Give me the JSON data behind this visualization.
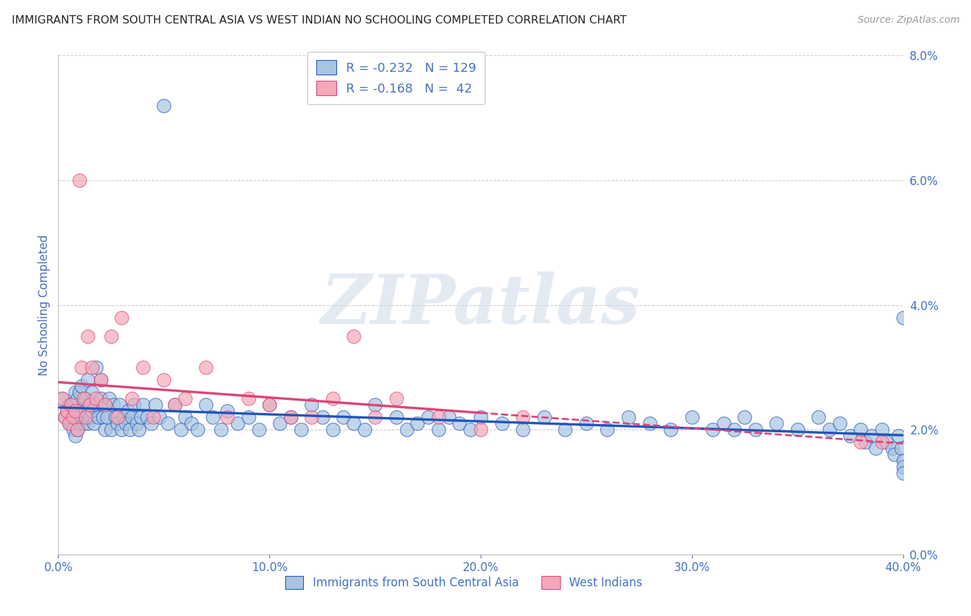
{
  "title": "IMMIGRANTS FROM SOUTH CENTRAL ASIA VS WEST INDIAN NO SCHOOLING COMPLETED CORRELATION CHART",
  "source": "Source: ZipAtlas.com",
  "ylabel": "No Schooling Completed",
  "legend_label1": "Immigrants from South Central Asia",
  "legend_label2": "West Indians",
  "R1": -0.232,
  "N1": 129,
  "R2": -0.168,
  "N2": 42,
  "xlim": [
    0.0,
    0.4
  ],
  "ylim": [
    0.0,
    0.08
  ],
  "xticks": [
    0.0,
    0.1,
    0.2,
    0.3,
    0.4
  ],
  "yticks": [
    0.0,
    0.02,
    0.04,
    0.06,
    0.08
  ],
  "color1": "#a8c4e0",
  "color2": "#f4a8b8",
  "line_color1": "#2255bb",
  "line_color2": "#dd4477",
  "bg_color": "#ffffff",
  "grid_color": "#cccccc",
  "title_color": "#222222",
  "tick_color": "#4472c4",
  "watermark": "ZIPatlas",
  "blue_scatter_x": [
    0.002,
    0.003,
    0.004,
    0.005,
    0.005,
    0.006,
    0.006,
    0.007,
    0.007,
    0.008,
    0.008,
    0.008,
    0.009,
    0.009,
    0.01,
    0.01,
    0.01,
    0.011,
    0.011,
    0.012,
    0.012,
    0.013,
    0.013,
    0.014,
    0.014,
    0.015,
    0.015,
    0.016,
    0.016,
    0.017,
    0.018,
    0.018,
    0.019,
    0.02,
    0.02,
    0.021,
    0.022,
    0.022,
    0.023,
    0.024,
    0.025,
    0.026,
    0.027,
    0.028,
    0.029,
    0.03,
    0.031,
    0.032,
    0.033,
    0.034,
    0.035,
    0.036,
    0.037,
    0.038,
    0.039,
    0.04,
    0.042,
    0.044,
    0.046,
    0.048,
    0.05,
    0.052,
    0.055,
    0.058,
    0.06,
    0.063,
    0.066,
    0.07,
    0.073,
    0.077,
    0.08,
    0.085,
    0.09,
    0.095,
    0.1,
    0.105,
    0.11,
    0.115,
    0.12,
    0.125,
    0.13,
    0.135,
    0.14,
    0.145,
    0.15,
    0.16,
    0.165,
    0.17,
    0.175,
    0.18,
    0.185,
    0.19,
    0.195,
    0.2,
    0.21,
    0.22,
    0.23,
    0.24,
    0.25,
    0.26,
    0.27,
    0.28,
    0.29,
    0.3,
    0.31,
    0.315,
    0.32,
    0.325,
    0.33,
    0.34,
    0.35,
    0.36,
    0.365,
    0.37,
    0.375,
    0.38,
    0.382,
    0.385,
    0.387,
    0.39,
    0.392,
    0.395,
    0.396,
    0.398,
    0.399,
    0.4,
    0.4,
    0.4,
    0.4
  ],
  "blue_scatter_y": [
    0.025,
    0.022,
    0.023,
    0.024,
    0.021,
    0.024,
    0.021,
    0.023,
    0.02,
    0.026,
    0.022,
    0.019,
    0.025,
    0.02,
    0.026,
    0.023,
    0.021,
    0.027,
    0.022,
    0.024,
    0.021,
    0.025,
    0.023,
    0.028,
    0.021,
    0.024,
    0.022,
    0.026,
    0.023,
    0.021,
    0.03,
    0.024,
    0.022,
    0.028,
    0.025,
    0.022,
    0.024,
    0.02,
    0.022,
    0.025,
    0.02,
    0.024,
    0.022,
    0.021,
    0.024,
    0.02,
    0.022,
    0.021,
    0.023,
    0.02,
    0.022,
    0.024,
    0.021,
    0.02,
    0.022,
    0.024,
    0.022,
    0.021,
    0.024,
    0.022,
    0.072,
    0.021,
    0.024,
    0.02,
    0.022,
    0.021,
    0.02,
    0.024,
    0.022,
    0.02,
    0.023,
    0.021,
    0.022,
    0.02,
    0.024,
    0.021,
    0.022,
    0.02,
    0.024,
    0.022,
    0.02,
    0.022,
    0.021,
    0.02,
    0.024,
    0.022,
    0.02,
    0.021,
    0.022,
    0.02,
    0.022,
    0.021,
    0.02,
    0.022,
    0.021,
    0.02,
    0.022,
    0.02,
    0.021,
    0.02,
    0.022,
    0.021,
    0.02,
    0.022,
    0.02,
    0.021,
    0.02,
    0.022,
    0.02,
    0.021,
    0.02,
    0.022,
    0.02,
    0.021,
    0.019,
    0.02,
    0.018,
    0.019,
    0.017,
    0.02,
    0.018,
    0.017,
    0.016,
    0.019,
    0.017,
    0.015,
    0.014,
    0.013,
    0.038
  ],
  "pink_scatter_x": [
    0.002,
    0.003,
    0.004,
    0.005,
    0.006,
    0.007,
    0.008,
    0.009,
    0.01,
    0.011,
    0.012,
    0.013,
    0.014,
    0.015,
    0.016,
    0.018,
    0.02,
    0.022,
    0.025,
    0.028,
    0.03,
    0.035,
    0.04,
    0.045,
    0.05,
    0.055,
    0.06,
    0.07,
    0.08,
    0.09,
    0.1,
    0.11,
    0.12,
    0.13,
    0.14,
    0.15,
    0.16,
    0.18,
    0.2,
    0.22,
    0.38,
    0.39
  ],
  "pink_scatter_y": [
    0.025,
    0.022,
    0.023,
    0.021,
    0.024,
    0.022,
    0.023,
    0.02,
    0.06,
    0.03,
    0.025,
    0.022,
    0.035,
    0.024,
    0.03,
    0.025,
    0.028,
    0.024,
    0.035,
    0.022,
    0.038,
    0.025,
    0.03,
    0.022,
    0.028,
    0.024,
    0.025,
    0.03,
    0.022,
    0.025,
    0.024,
    0.022,
    0.022,
    0.025,
    0.035,
    0.022,
    0.025,
    0.022,
    0.02,
    0.022,
    0.018,
    0.018
  ]
}
